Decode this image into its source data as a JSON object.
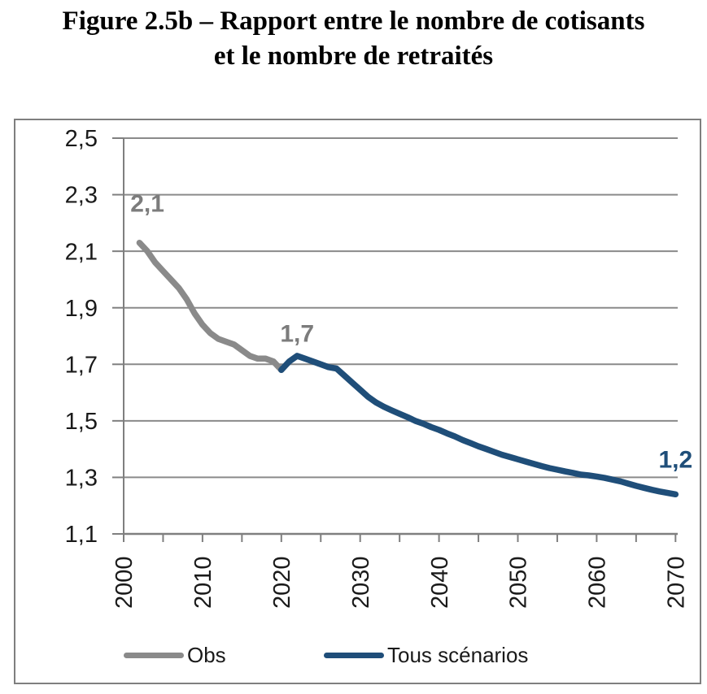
{
  "figure": {
    "title_line1": "Figure 2.5b – Rapport entre le nombre de cotisants",
    "title_line2": "et le nombre de retraités"
  },
  "chart_data": {
    "type": "line",
    "title": "Rapport entre le nombre de cotisants et le nombre de retraités",
    "xlabel": "",
    "ylabel": "",
    "xlim": [
      2000,
      2070
    ],
    "ylim": [
      1.1,
      2.5
    ],
    "grid": "horizontal",
    "legend_position": "bottom",
    "colors": {
      "grid": "#8a8a8a",
      "axis": "#7f7f7f",
      "tick_label": "#1a1a1a"
    },
    "y_ticks": [
      {
        "value": 2.5,
        "label": "2,5"
      },
      {
        "value": 2.3,
        "label": "2,3"
      },
      {
        "value": 2.1,
        "label": "2,1"
      },
      {
        "value": 1.9,
        "label": "1,9"
      },
      {
        "value": 1.7,
        "label": "1,7"
      },
      {
        "value": 1.5,
        "label": "1,5"
      },
      {
        "value": 1.3,
        "label": "1,3"
      },
      {
        "value": 1.1,
        "label": "1,1"
      }
    ],
    "x_ticks": [
      {
        "value": 2000,
        "label": "2000"
      },
      {
        "value": 2010,
        "label": "2010"
      },
      {
        "value": 2020,
        "label": "2020"
      },
      {
        "value": 2030,
        "label": "2030"
      },
      {
        "value": 2040,
        "label": "2040"
      },
      {
        "value": 2050,
        "label": "2050"
      },
      {
        "value": 2060,
        "label": "2060"
      },
      {
        "value": 2070,
        "label": "2070"
      }
    ],
    "x_minor_tick_step": 5,
    "series": [
      {
        "name": "Obs",
        "color": "#8a8a8a",
        "points": [
          [
            2002,
            2.13
          ],
          [
            2003,
            2.1
          ],
          [
            2004,
            2.06
          ],
          [
            2005,
            2.03
          ],
          [
            2006,
            2.0
          ],
          [
            2007,
            1.97
          ],
          [
            2008,
            1.93
          ],
          [
            2009,
            1.88
          ],
          [
            2010,
            1.84
          ],
          [
            2011,
            1.81
          ],
          [
            2012,
            1.79
          ],
          [
            2013,
            1.78
          ],
          [
            2014,
            1.77
          ],
          [
            2015,
            1.75
          ],
          [
            2016,
            1.73
          ],
          [
            2017,
            1.72
          ],
          [
            2018,
            1.72
          ],
          [
            2019,
            1.71
          ],
          [
            2020,
            1.68
          ]
        ]
      },
      {
        "name": "Tous scénarios",
        "color": "#1f4e79",
        "points": [
          [
            2020,
            1.68
          ],
          [
            2021,
            1.71
          ],
          [
            2022,
            1.73
          ],
          [
            2023,
            1.72
          ],
          [
            2024,
            1.71
          ],
          [
            2025,
            1.7
          ],
          [
            2026,
            1.69
          ],
          [
            2027,
            1.685
          ],
          [
            2028,
            1.66
          ],
          [
            2029,
            1.635
          ],
          [
            2030,
            1.61
          ],
          [
            2031,
            1.585
          ],
          [
            2032,
            1.565
          ],
          [
            2033,
            1.55
          ],
          [
            2034,
            1.537
          ],
          [
            2035,
            1.525
          ],
          [
            2036,
            1.513
          ],
          [
            2037,
            1.5
          ],
          [
            2038,
            1.49
          ],
          [
            2039,
            1.478
          ],
          [
            2040,
            1.468
          ],
          [
            2041,
            1.456
          ],
          [
            2042,
            1.445
          ],
          [
            2043,
            1.432
          ],
          [
            2044,
            1.421
          ],
          [
            2045,
            1.41
          ],
          [
            2046,
            1.4
          ],
          [
            2047,
            1.39
          ],
          [
            2048,
            1.38
          ],
          [
            2049,
            1.372
          ],
          [
            2050,
            1.364
          ],
          [
            2051,
            1.356
          ],
          [
            2052,
            1.348
          ],
          [
            2053,
            1.34
          ],
          [
            2054,
            1.333
          ],
          [
            2055,
            1.327
          ],
          [
            2056,
            1.321
          ],
          [
            2057,
            1.316
          ],
          [
            2058,
            1.31
          ],
          [
            2059,
            1.307
          ],
          [
            2060,
            1.303
          ],
          [
            2061,
            1.298
          ],
          [
            2062,
            1.292
          ],
          [
            2063,
            1.286
          ],
          [
            2064,
            1.278
          ],
          [
            2065,
            1.27
          ],
          [
            2066,
            1.263
          ],
          [
            2067,
            1.256
          ],
          [
            2068,
            1.25
          ],
          [
            2069,
            1.245
          ],
          [
            2070,
            1.24
          ]
        ]
      }
    ],
    "annotations": [
      {
        "text": "2,1",
        "color": "#7c7c7c",
        "year": 2003,
        "value": 2.27
      },
      {
        "text": "1,7",
        "color": "#7c7c7c",
        "year": 2022,
        "value": 1.81
      },
      {
        "text": "1,2",
        "color": "#1f4e79",
        "year": 2070,
        "value": 1.365
      }
    ]
  }
}
